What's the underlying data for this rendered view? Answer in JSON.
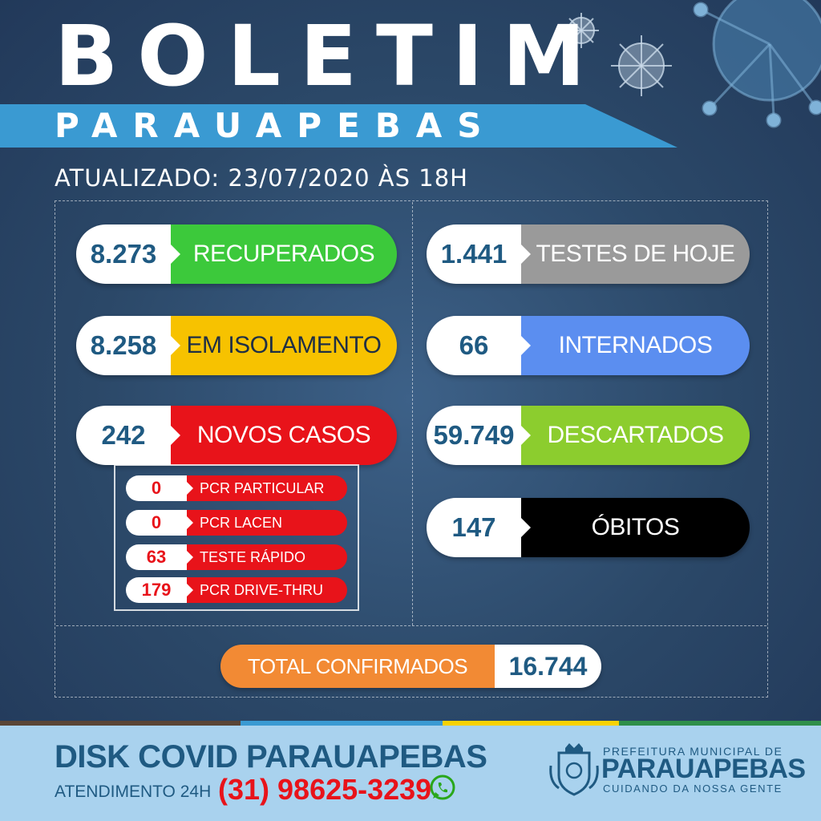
{
  "header": {
    "title": "BOLETIM",
    "subtitle": "PARAUAPEBAS",
    "updated": "ATUALIZADO: 23/07/2020 ÀS 18H"
  },
  "left_stats": [
    {
      "value": "8.273",
      "label": "RECUPERADOS",
      "color": "#3cc93b"
    },
    {
      "value": "8.258",
      "label": "EM ISOLAMENTO",
      "color": "#f7c200"
    },
    {
      "value": "242",
      "label": "NOVOS CASOS",
      "color": "#e8131a"
    }
  ],
  "new_case_breakdown": [
    {
      "value": "0",
      "label": "PCR PARTICULAR"
    },
    {
      "value": "0",
      "label": "PCR LACEN"
    },
    {
      "value": "63",
      "label": "TESTE RÁPIDO"
    },
    {
      "value": "179",
      "label": "PCR DRIVE-THRU"
    }
  ],
  "right_stats": [
    {
      "value": "1.441",
      "label": "TESTES DE HOJE",
      "color": "#9a9a9a"
    },
    {
      "value": "66",
      "label": "INTERNADOS",
      "color": "#5b8ef0"
    },
    {
      "value": "59.749",
      "label": "DESCARTADOS",
      "color": "#8ccd2e"
    },
    {
      "value": "147",
      "label": "ÓBITOS",
      "color": "#000000"
    }
  ],
  "total": {
    "label": "TOTAL CONFIRMADOS",
    "value": "16.744",
    "color": "#f28a34"
  },
  "footer": {
    "disk": "DISK COVID PARAUAPEBAS",
    "atendimento": "ATENDIMENTO 24H",
    "phone": "(31) 98625-3239",
    "whatsapp_icon": "whatsapp-icon",
    "prefeitura_line1": "PREFEITURA MUNICIPAL DE",
    "prefeitura_line2": "PARAUAPEBAS",
    "prefeitura_line3": "CUIDANDO DA NOSSA GENTE",
    "stripe_colors": [
      "#5a4536",
      "#3a9ad2",
      "#f7d200",
      "#2f8f4a"
    ]
  }
}
